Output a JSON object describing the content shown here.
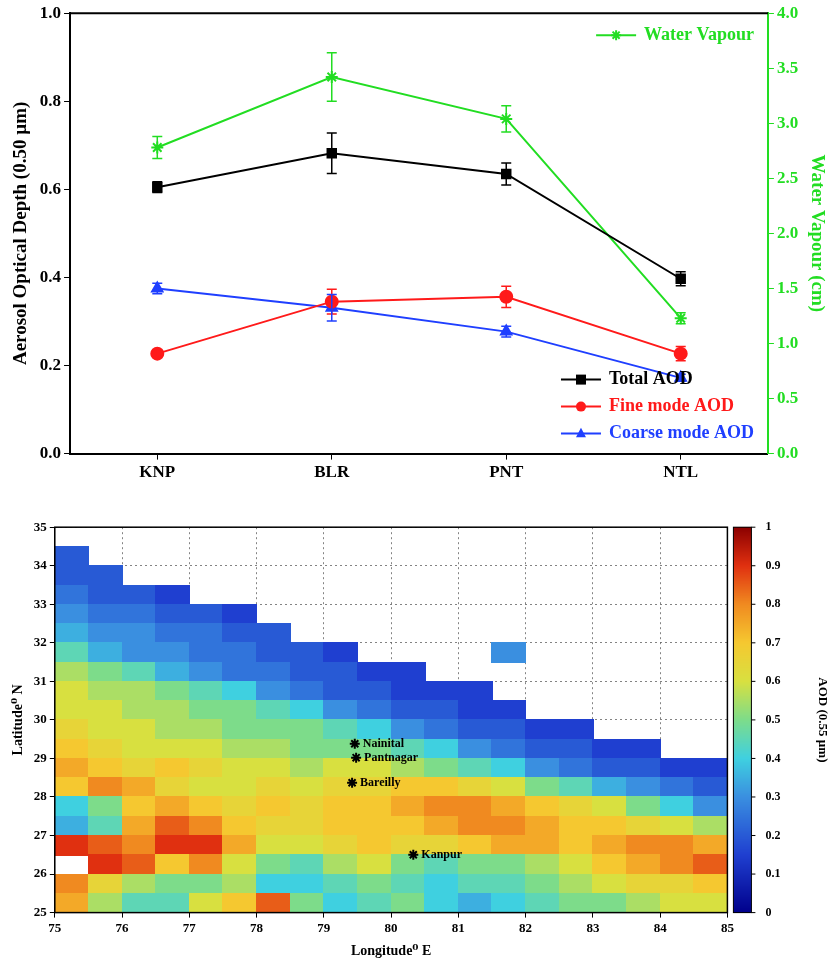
{
  "chart_data": [
    {
      "type": "line",
      "categories": [
        "KNP",
        "BLR",
        "PNT",
        "NTL"
      ],
      "ylabel": "Aerosol Optical Depth (0.50 µm)",
      "y2label": "Water Vapour (cm)",
      "ylim": [
        0,
        1
      ],
      "yticks": [
        {
          "value": 0,
          "label": "0.0"
        },
        0.2,
        0.4,
        0.6,
        0.8,
        {
          "value": 1,
          "label": "1.0"
        }
      ],
      "y2lim": [
        0,
        4
      ],
      "y2ticks": [
        {
          "value": 0,
          "label": "0.0"
        },
        0.5,
        {
          "value": 1,
          "label": "1.0"
        },
        1.5,
        {
          "value": 2,
          "label": "2.0"
        },
        2.5,
        {
          "value": 3,
          "label": "3.0"
        },
        3.5,
        {
          "value": 4,
          "label": "4.0"
        }
      ],
      "grid": false,
      "legend": "right",
      "series": [
        {
          "name": "Total AOD",
          "color": "#000000",
          "marker": "square",
          "values": [
            0.605,
            0.682,
            0.635,
            0.397
          ],
          "errors": [
            0.012,
            0.046,
            0.025,
            0.016
          ]
        },
        {
          "name": "Fine mode AOD",
          "color": "#ff1a1a",
          "marker": "circle",
          "values": [
            0.227,
            0.345,
            0.356,
            0.227
          ],
          "errors": [
            0.008,
            0.028,
            0.024,
            0.016
          ]
        },
        {
          "name": "Coarse mode AOD",
          "color": "#1f3fff",
          "marker": "triangle",
          "values": [
            0.375,
            0.331,
            0.277,
            0.172
          ],
          "errors": [
            0.012,
            0.03,
            0.012,
            0.008
          ]
        },
        {
          "name": "Water Vapour",
          "color": "#22dd22",
          "marker": "star",
          "axis": "y2",
          "values": [
            2.78,
            3.42,
            3.04,
            1.23
          ],
          "errors": [
            0.1,
            0.22,
            0.12,
            0.05
          ]
        }
      ]
    },
    {
      "type": "heatmap",
      "xlabel": "Longitude⁰ E",
      "ylabel": "Latitude⁰ N",
      "xlim": [
        75,
        85
      ],
      "xticks": [
        75,
        76,
        77,
        78,
        79,
        80,
        81,
        82,
        83,
        84,
        85
      ],
      "ylim": [
        25,
        35
      ],
      "yticks": [
        25,
        26,
        27,
        28,
        29,
        30,
        31,
        32,
        33,
        34,
        35
      ],
      "grid": true,
      "x": [
        75.25,
        75.75,
        76.25,
        76.75,
        77.25,
        77.75,
        78.25,
        78.75,
        79.25,
        79.75,
        80.25,
        80.75,
        81.25,
        81.75,
        82.25,
        82.75,
        83.25,
        83.75,
        84.25,
        84.75
      ],
      "y": [
        34.75,
        34.25,
        33.75,
        33.25,
        32.75,
        32.25,
        31.75,
        31.25,
        30.75,
        30.25,
        29.75,
        29.25,
        28.75,
        28.25,
        27.75,
        27.25,
        26.75,
        26.25,
        25.75,
        25.25
      ],
      "z": [
        [
          null,
          null,
          null,
          null,
          null,
          null,
          null,
          null,
          null,
          null,
          null,
          null,
          null,
          null,
          null,
          null,
          null,
          null,
          null,
          null
        ],
        [
          0.2,
          null,
          null,
          null,
          null,
          null,
          null,
          null,
          null,
          null,
          null,
          null,
          null,
          null,
          null,
          null,
          null,
          null,
          null,
          null
        ],
        [
          0.2,
          0.2,
          null,
          null,
          null,
          null,
          null,
          null,
          null,
          null,
          null,
          null,
          null,
          null,
          null,
          null,
          null,
          null,
          null,
          null
        ],
        [
          0.25,
          0.2,
          0.2,
          0.15,
          null,
          null,
          null,
          null,
          null,
          null,
          null,
          null,
          null,
          null,
          null,
          null,
          null,
          null,
          null,
          null
        ],
        [
          0.3,
          0.25,
          0.25,
          0.2,
          0.2,
          0.15,
          null,
          null,
          null,
          null,
          null,
          null,
          null,
          null,
          null,
          null,
          null,
          null,
          null,
          null
        ],
        [
          0.35,
          0.3,
          0.3,
          0.25,
          0.25,
          0.2,
          0.2,
          null,
          null,
          null,
          null,
          null,
          null,
          null,
          null,
          null,
          null,
          null,
          null,
          null
        ],
        [
          0.45,
          0.35,
          0.3,
          0.3,
          0.25,
          0.25,
          0.2,
          0.2,
          0.15,
          null,
          null,
          null,
          null,
          0.3,
          null,
          null,
          null,
          null,
          null,
          null
        ],
        [
          0.55,
          0.5,
          0.45,
          0.35,
          0.3,
          0.25,
          0.25,
          0.2,
          0.2,
          0.15,
          0.15,
          null,
          null,
          null,
          null,
          null,
          null,
          null,
          null,
          null
        ],
        [
          0.6,
          0.55,
          0.55,
          0.5,
          0.45,
          0.4,
          0.3,
          0.25,
          0.2,
          0.2,
          0.15,
          0.15,
          0.15,
          null,
          null,
          null,
          null,
          null,
          null,
          null
        ],
        [
          0.6,
          0.6,
          0.55,
          0.55,
          0.5,
          0.5,
          0.45,
          0.4,
          0.3,
          0.25,
          0.2,
          0.2,
          0.15,
          0.15,
          null,
          null,
          null,
          null,
          null,
          null
        ],
        [
          0.65,
          0.6,
          0.6,
          0.55,
          0.55,
          0.5,
          0.5,
          0.5,
          0.45,
          0.4,
          0.3,
          0.25,
          0.2,
          0.2,
          0.15,
          0.15,
          null,
          null,
          null,
          null
        ],
        [
          0.7,
          0.65,
          0.6,
          0.6,
          0.6,
          0.55,
          0.55,
          0.5,
          0.5,
          0.5,
          0.45,
          0.4,
          0.3,
          0.25,
          0.2,
          0.2,
          0.15,
          0.15,
          null,
          null
        ],
        [
          0.75,
          0.7,
          0.65,
          0.7,
          0.65,
          0.6,
          0.6,
          0.55,
          0.6,
          0.6,
          0.55,
          0.5,
          0.45,
          0.4,
          0.3,
          0.25,
          0.2,
          0.2,
          0.15,
          0.15
        ],
        [
          0.7,
          0.8,
          0.75,
          0.65,
          0.6,
          0.6,
          0.65,
          0.6,
          0.65,
          0.65,
          0.7,
          0.7,
          0.65,
          0.6,
          0.5,
          0.45,
          0.35,
          0.3,
          0.25,
          0.2
        ],
        [
          0.4,
          0.5,
          0.7,
          0.75,
          0.7,
          0.65,
          0.7,
          0.65,
          0.7,
          0.7,
          0.75,
          0.8,
          0.8,
          0.75,
          0.7,
          0.65,
          0.6,
          0.5,
          0.4,
          0.3
        ],
        [
          0.35,
          0.45,
          0.75,
          0.85,
          0.8,
          0.7,
          0.65,
          0.65,
          0.7,
          0.7,
          0.7,
          0.75,
          0.8,
          0.8,
          0.75,
          0.7,
          0.7,
          0.65,
          0.6,
          0.55
        ],
        [
          0.9,
          0.85,
          0.8,
          0.9,
          0.9,
          0.75,
          0.6,
          0.6,
          0.65,
          0.7,
          0.65,
          0.65,
          0.7,
          0.75,
          0.75,
          0.7,
          0.75,
          0.8,
          0.8,
          0.75
        ],
        [
          null,
          0.9,
          0.85,
          0.7,
          0.8,
          0.6,
          0.5,
          0.45,
          0.55,
          0.6,
          0.5,
          0.45,
          0.5,
          0.5,
          0.55,
          0.6,
          0.7,
          0.75,
          0.8,
          0.85
        ],
        [
          0.8,
          0.65,
          0.55,
          0.5,
          0.5,
          0.55,
          0.4,
          0.4,
          0.45,
          0.5,
          0.45,
          0.4,
          0.45,
          0.45,
          0.5,
          0.55,
          0.6,
          0.65,
          0.65,
          0.7
        ],
        [
          0.75,
          0.55,
          0.45,
          0.45,
          0.6,
          0.7,
          0.85,
          0.5,
          0.4,
          0.45,
          0.5,
          0.4,
          0.35,
          0.4,
          0.45,
          0.5,
          0.5,
          0.55,
          0.6,
          0.6
        ]
      ],
      "colorbar": {
        "label": "AOD (0.55 µm)",
        "range": [
          0,
          1
        ],
        "ticks": [
          0,
          0.1,
          0.2,
          0.3,
          0.4,
          0.5,
          0.6,
          0.7,
          0.8,
          0.9,
          1
        ]
      },
      "marker": "star",
      "points": [
        {
          "name": "Nainital",
          "x": 79.46,
          "y": 29.38
        },
        {
          "name": "Pantnagar",
          "x": 79.48,
          "y": 29.02
        },
        {
          "name": "Bareilly",
          "x": 79.42,
          "y": 28.37
        },
        {
          "name": "Kanpur",
          "x": 80.33,
          "y": 26.5
        }
      ]
    }
  ]
}
